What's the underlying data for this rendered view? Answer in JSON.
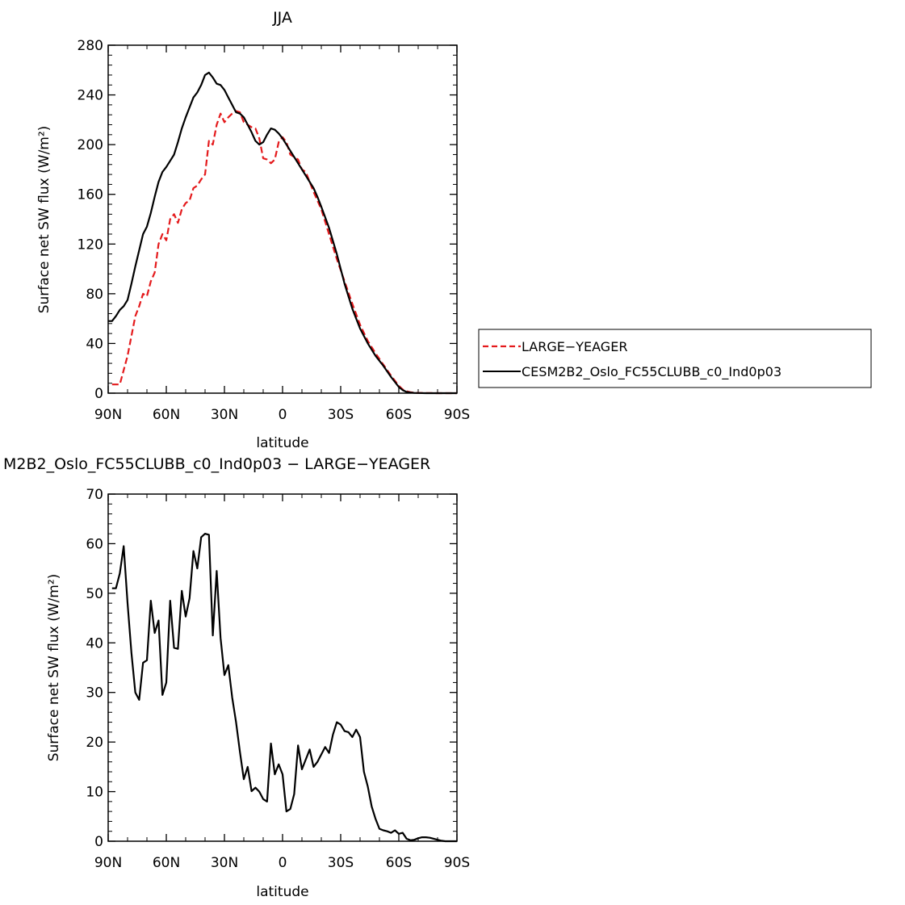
{
  "chart_data": [
    {
      "type": "line",
      "title": "JJA",
      "xlabel": "latitude",
      "ylabel": "Surface net SW flux (W/m²)",
      "xlim": [
        90,
        -90
      ],
      "ylim": [
        0,
        280
      ],
      "xticks": [
        90,
        60,
        30,
        0,
        -30,
        -60,
        -90
      ],
      "xtick_labels": [
        "90N",
        "60N",
        "30N",
        "0",
        "30S",
        "60S",
        "90S"
      ],
      "yticks": [
        0,
        40,
        80,
        120,
        160,
        200,
        240,
        280
      ],
      "ytick_labels": [
        "0",
        "40",
        "80",
        "120",
        "160",
        "200",
        "240",
        "280"
      ],
      "legend_position": "right",
      "series": [
        {
          "name": "LARGE−YEAGER",
          "color": "#e41a1c",
          "dash": "dashed",
          "x": [
            88,
            84,
            80,
            76,
            74,
            72,
            70,
            68,
            66,
            64,
            62,
            60,
            58,
            56,
            54,
            52,
            50,
            48,
            46,
            44,
            42,
            40,
            38,
            36,
            34,
            32,
            30,
            28,
            26,
            24,
            22,
            20,
            18,
            16,
            14,
            12,
            10,
            8,
            6,
            4,
            2,
            0,
            -2,
            -4,
            -6,
            -8,
            -10,
            -12,
            -14,
            -16,
            -18,
            -20,
            -24,
            -28,
            -32,
            -36,
            -40,
            -44,
            -48,
            -52,
            -56,
            -60,
            -62,
            -64,
            -66,
            -68,
            -70,
            -74,
            -80,
            -86,
            -90
          ],
          "y": [
            7,
            7,
            30,
            62,
            70,
            80,
            78,
            90,
            97,
            120,
            128,
            123,
            140,
            144,
            137,
            148,
            153,
            155,
            165,
            167,
            172,
            176,
            203,
            200,
            216,
            225,
            218,
            222,
            225,
            227,
            226,
            218,
            216,
            214,
            213,
            205,
            189,
            188,
            185,
            188,
            202,
            206,
            202,
            192,
            190,
            188,
            180,
            178,
            170,
            162,
            155,
            148,
            128,
            108,
            90,
            72,
            55,
            42,
            32,
            23,
            14,
            6,
            3,
            1.5,
            0.8,
            0.3,
            0.2,
            0.1,
            0,
            0,
            0
          ]
        },
        {
          "name": "CESM2B2_Oslo_FC55CLUBB_c0_Ind0p03",
          "color": "#000000",
          "dash": "solid",
          "x": [
            90,
            88,
            86,
            84,
            82,
            80,
            78,
            76,
            74,
            72,
            70,
            68,
            66,
            64,
            62,
            60,
            58,
            56,
            54,
            52,
            50,
            48,
            46,
            44,
            42,
            40,
            38,
            36,
            34,
            32,
            30,
            28,
            26,
            24,
            22,
            20,
            18,
            16,
            14,
            12,
            10,
            8,
            6,
            4,
            2,
            0,
            -2,
            -4,
            -6,
            -8,
            -10,
            -12,
            -14,
            -16,
            -18,
            -20,
            -24,
            -28,
            -32,
            -36,
            -40,
            -44,
            -48,
            -52,
            -56,
            -60,
            -62,
            -64,
            -66,
            -68,
            -70,
            -74,
            -80,
            -86,
            -90
          ],
          "y": [
            58,
            58,
            62,
            67,
            70,
            75,
            88,
            102,
            115,
            128,
            134,
            145,
            158,
            170,
            178,
            182,
            187,
            192,
            202,
            213,
            222,
            230,
            238,
            242,
            248,
            256,
            258,
            254,
            249,
            248,
            244,
            238,
            232,
            226,
            225,
            222,
            216,
            210,
            203,
            200,
            202,
            208,
            213,
            212,
            209,
            205,
            200,
            195,
            190,
            185,
            180,
            175,
            170,
            165,
            158,
            150,
            133,
            112,
            88,
            68,
            52,
            40,
            30,
            22,
            13,
            5,
            2.5,
            1,
            0.5,
            0.2,
            0.1,
            0,
            0,
            0,
            0
          ]
        }
      ]
    },
    {
      "type": "line",
      "title": "M2B2_Oslo_FC55CLUBB_c0_Ind0p03 − LARGE−YEAGER",
      "xlabel": "latitude",
      "ylabel": "Surface net SW flux (W/m²)",
      "xlim": [
        90,
        -90
      ],
      "ylim": [
        0,
        70
      ],
      "xticks": [
        90,
        60,
        30,
        0,
        -30,
        -60,
        -90
      ],
      "xtick_labels": [
        "90N",
        "60N",
        "30N",
        "0",
        "30S",
        "60S",
        "90S"
      ],
      "yticks": [
        0,
        10,
        20,
        30,
        40,
        50,
        60,
        70
      ],
      "ytick_labels": [
        "0",
        "10",
        "20",
        "30",
        "40",
        "50",
        "60",
        "70"
      ],
      "series": [
        {
          "color": "#000000",
          "dash": "solid",
          "x": [
            88,
            86,
            84,
            82,
            80,
            78,
            76,
            74,
            72,
            70,
            68,
            66,
            64,
            62,
            60,
            58,
            56,
            54,
            52,
            50,
            48,
            46,
            44,
            42,
            40,
            38,
            36,
            34,
            32,
            30,
            28,
            26,
            24,
            22,
            20,
            18,
            16,
            14,
            12,
            10,
            8,
            6,
            4,
            2,
            0,
            -2,
            -4,
            -6,
            -8,
            -10,
            -12,
            -14,
            -16,
            -18,
            -20,
            -22,
            -24,
            -26,
            -28,
            -30,
            -32,
            -34,
            -36,
            -38,
            -40,
            -42,
            -44,
            -46,
            -48,
            -50,
            -52,
            -54,
            -56,
            -58,
            -60,
            -62,
            -64,
            -66,
            -68,
            -70,
            -72,
            -74,
            -76,
            -78,
            -80,
            -82,
            -84,
            -86,
            -88,
            -90
          ],
          "y": [
            51,
            51,
            54,
            59.5,
            48,
            38,
            30,
            28.5,
            36,
            36.5,
            48.5,
            42,
            44.5,
            29.5,
            32,
            48.5,
            39,
            38.8,
            50.5,
            45.3,
            49,
            58.5,
            55,
            61.3,
            62,
            61.8,
            41.5,
            54.5,
            41,
            33.5,
            35.5,
            29,
            24,
            18,
            12.5,
            15,
            10.1,
            10.8,
            10,
            8.5,
            8,
            19.7,
            13.5,
            15.5,
            13.5,
            6,
            6.5,
            9.5,
            19.3,
            14.5,
            16.5,
            18.5,
            15,
            16,
            17.5,
            19,
            17.8,
            21.5,
            24,
            23.5,
            22.2,
            22,
            21,
            22.5,
            21,
            14,
            11,
            7,
            4.5,
            2.5,
            2.2,
            2,
            1.7,
            2.2,
            1.5,
            1.7,
            0.5,
            0.2,
            0.3,
            0.6,
            0.8,
            0.8,
            0.7,
            0.5,
            0.3,
            0.1,
            0,
            0,
            0,
            0
          ]
        }
      ]
    }
  ]
}
